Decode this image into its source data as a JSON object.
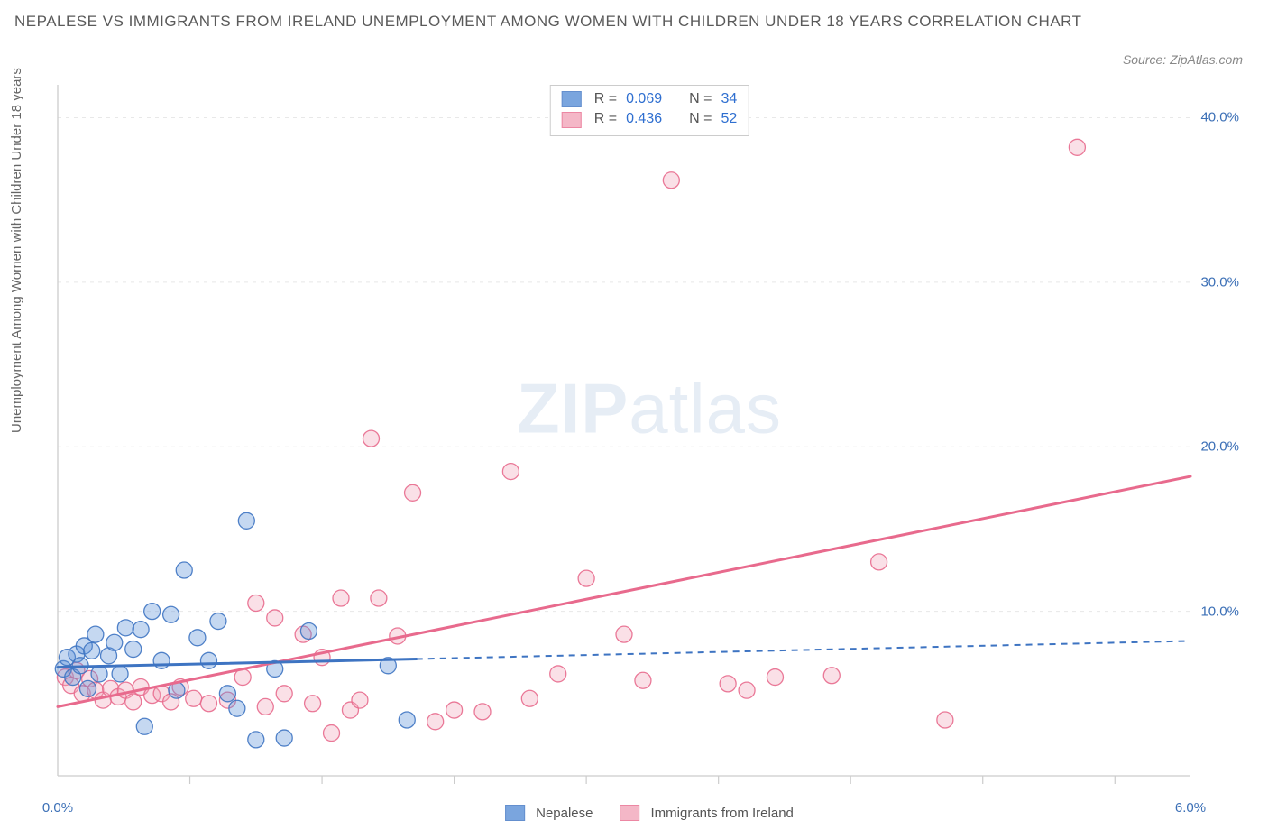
{
  "title": "NEPALESE VS IMMIGRANTS FROM IRELAND UNEMPLOYMENT AMONG WOMEN WITH CHILDREN UNDER 18 YEARS CORRELATION CHART",
  "source": "Source: ZipAtlas.com",
  "watermark_a": "ZIP",
  "watermark_b": "atlas",
  "ylabel": "Unemployment Among Women with Children Under 18 years",
  "chart": {
    "type": "scatter",
    "background_color": "#ffffff",
    "grid_color": "#e8e8e8",
    "axis_color": "#cccccc",
    "tick_label_color": "#3b6fb6",
    "xlim": [
      0.0,
      6.0
    ],
    "ylim": [
      0.0,
      42.0
    ],
    "xticks": [
      0.0,
      6.0
    ],
    "xtick_labels": [
      "0.0%",
      "6.0%"
    ],
    "xtick_minor": [
      0.7,
      1.4,
      2.1,
      2.8,
      3.5,
      4.2,
      4.9,
      5.6
    ],
    "yticks": [
      10.0,
      20.0,
      30.0,
      40.0
    ],
    "ytick_labels": [
      "10.0%",
      "20.0%",
      "30.0%",
      "40.0%"
    ],
    "marker_radius": 9,
    "marker_fill_opacity": 0.35,
    "marker_stroke_opacity": 0.9,
    "line_width_solid": 3,
    "line_width_dash": 2,
    "dash_pattern": "7 6",
    "series": {
      "blue": {
        "label": "Nepalese",
        "color": "#5a8fd6",
        "stroke": "#3e74c2",
        "R": "0.069",
        "N": "34",
        "trend_solid": {
          "x1": 0.0,
          "y1": 6.6,
          "x2": 1.9,
          "y2": 7.1
        },
        "trend_dashed": {
          "x1": 1.9,
          "y1": 7.1,
          "x2": 6.0,
          "y2": 8.2
        },
        "points": [
          [
            0.03,
            6.5
          ],
          [
            0.05,
            7.2
          ],
          [
            0.08,
            6.0
          ],
          [
            0.1,
            7.4
          ],
          [
            0.12,
            6.7
          ],
          [
            0.14,
            7.9
          ],
          [
            0.16,
            5.3
          ],
          [
            0.18,
            7.6
          ],
          [
            0.2,
            8.6
          ],
          [
            0.22,
            6.2
          ],
          [
            0.27,
            7.3
          ],
          [
            0.3,
            8.1
          ],
          [
            0.33,
            6.2
          ],
          [
            0.36,
            9.0
          ],
          [
            0.4,
            7.7
          ],
          [
            0.44,
            8.9
          ],
          [
            0.46,
            3.0
          ],
          [
            0.5,
            10.0
          ],
          [
            0.55,
            7.0
          ],
          [
            0.6,
            9.8
          ],
          [
            0.63,
            5.2
          ],
          [
            0.67,
            12.5
          ],
          [
            0.74,
            8.4
          ],
          [
            0.8,
            7.0
          ],
          [
            0.85,
            9.4
          ],
          [
            0.9,
            5.0
          ],
          [
            0.95,
            4.1
          ],
          [
            1.0,
            15.5
          ],
          [
            1.05,
            2.2
          ],
          [
            1.15,
            6.5
          ],
          [
            1.2,
            2.3
          ],
          [
            1.33,
            8.8
          ],
          [
            1.75,
            6.7
          ],
          [
            1.85,
            3.4
          ]
        ]
      },
      "pink": {
        "label": "Immigrants from Ireland",
        "color": "#f2a6ba",
        "stroke": "#e86a8d",
        "R": "0.436",
        "N": "52",
        "trend_solid": {
          "x1": 0.0,
          "y1": 4.2,
          "x2": 6.0,
          "y2": 18.2
        },
        "trend_dashed": null,
        "points": [
          [
            0.04,
            6.0
          ],
          [
            0.07,
            5.5
          ],
          [
            0.1,
            6.4
          ],
          [
            0.13,
            5.0
          ],
          [
            0.17,
            5.9
          ],
          [
            0.2,
            5.2
          ],
          [
            0.24,
            4.6
          ],
          [
            0.28,
            5.3
          ],
          [
            0.32,
            4.8
          ],
          [
            0.36,
            5.2
          ],
          [
            0.4,
            4.5
          ],
          [
            0.44,
            5.4
          ],
          [
            0.5,
            4.9
          ],
          [
            0.55,
            5.0
          ],
          [
            0.6,
            4.5
          ],
          [
            0.65,
            5.4
          ],
          [
            0.72,
            4.7
          ],
          [
            0.8,
            4.4
          ],
          [
            0.9,
            4.6
          ],
          [
            0.98,
            6.0
          ],
          [
            1.05,
            10.5
          ],
          [
            1.1,
            4.2
          ],
          [
            1.15,
            9.6
          ],
          [
            1.2,
            5.0
          ],
          [
            1.3,
            8.6
          ],
          [
            1.35,
            4.4
          ],
          [
            1.4,
            7.2
          ],
          [
            1.45,
            2.6
          ],
          [
            1.5,
            10.8
          ],
          [
            1.55,
            4.0
          ],
          [
            1.6,
            4.6
          ],
          [
            1.66,
            20.5
          ],
          [
            1.7,
            10.8
          ],
          [
            1.8,
            8.5
          ],
          [
            1.88,
            17.2
          ],
          [
            2.0,
            3.3
          ],
          [
            2.1,
            4.0
          ],
          [
            2.25,
            3.9
          ],
          [
            2.4,
            18.5
          ],
          [
            2.5,
            4.7
          ],
          [
            2.8,
            12.0
          ],
          [
            3.0,
            8.6
          ],
          [
            3.1,
            5.8
          ],
          [
            3.25,
            36.2
          ],
          [
            3.55,
            5.6
          ],
          [
            3.65,
            5.2
          ],
          [
            4.1,
            6.1
          ],
          [
            4.35,
            13.0
          ],
          [
            4.7,
            3.4
          ],
          [
            5.4,
            38.2
          ],
          [
            3.8,
            6.0
          ],
          [
            2.65,
            6.2
          ]
        ]
      }
    },
    "stats_box": {
      "R_label": "R =",
      "N_label": "N ="
    },
    "bottom_legend_swatch_size": 20
  }
}
